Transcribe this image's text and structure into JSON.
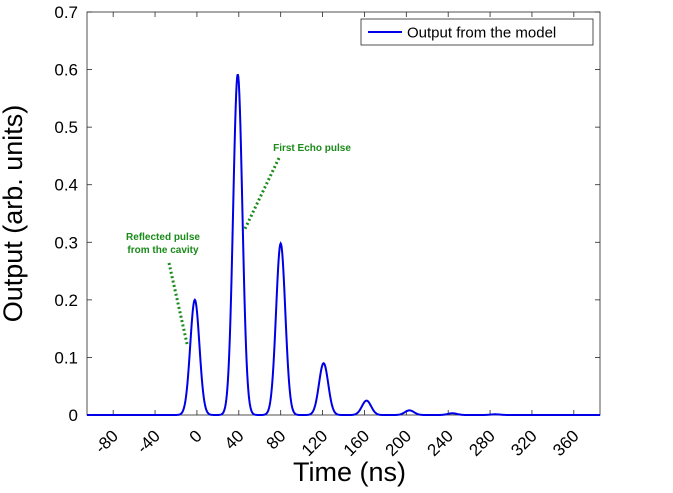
{
  "chart_data": {
    "type": "line",
    "xlabel": "Time (ns)",
    "ylabel": "Output (arb. units)",
    "xlim": [
      -105,
      385
    ],
    "ylim": [
      0,
      0.7
    ],
    "xticks": [
      -80,
      -40,
      0,
      40,
      80,
      120,
      160,
      200,
      240,
      280,
      320,
      360
    ],
    "xtick_labels": [
      "-80",
      "-40",
      "0",
      "40",
      "80",
      "120",
      "160",
      "200",
      "240",
      "280",
      "320",
      "360"
    ],
    "yticks": [
      0,
      0.1,
      0.2,
      0.3,
      0.4,
      0.5,
      0.6,
      0.7
    ],
    "ytick_labels": [
      "0",
      "0.1",
      "0.2",
      "0.3",
      "0.4",
      "0.5",
      "0.6",
      "0.7"
    ],
    "grid": false,
    "legend_position": "top-right",
    "series": [
      {
        "name": "Output from the model",
        "color": "#0000e6",
        "peaks": [
          {
            "time": -2,
            "value": 0.2
          },
          {
            "time": 39,
            "value": 0.592
          },
          {
            "time": 80,
            "value": 0.298
          },
          {
            "time": 121,
            "value": 0.09
          },
          {
            "time": 162,
            "value": 0.025
          },
          {
            "time": 203,
            "value": 0.008
          },
          {
            "time": 244,
            "value": 0.003
          },
          {
            "time": 285,
            "value": 0.0012
          }
        ]
      }
    ],
    "annotations": [
      {
        "lines": [
          "Reflected pulse",
          "from the cavity"
        ],
        "target_time": -9,
        "target_value": 0.12,
        "color": "#1a8a1a"
      },
      {
        "lines": [
          "First Echo pulse"
        ],
        "target_time": 45,
        "target_value": 0.32,
        "color": "#1a8a1a"
      }
    ]
  }
}
